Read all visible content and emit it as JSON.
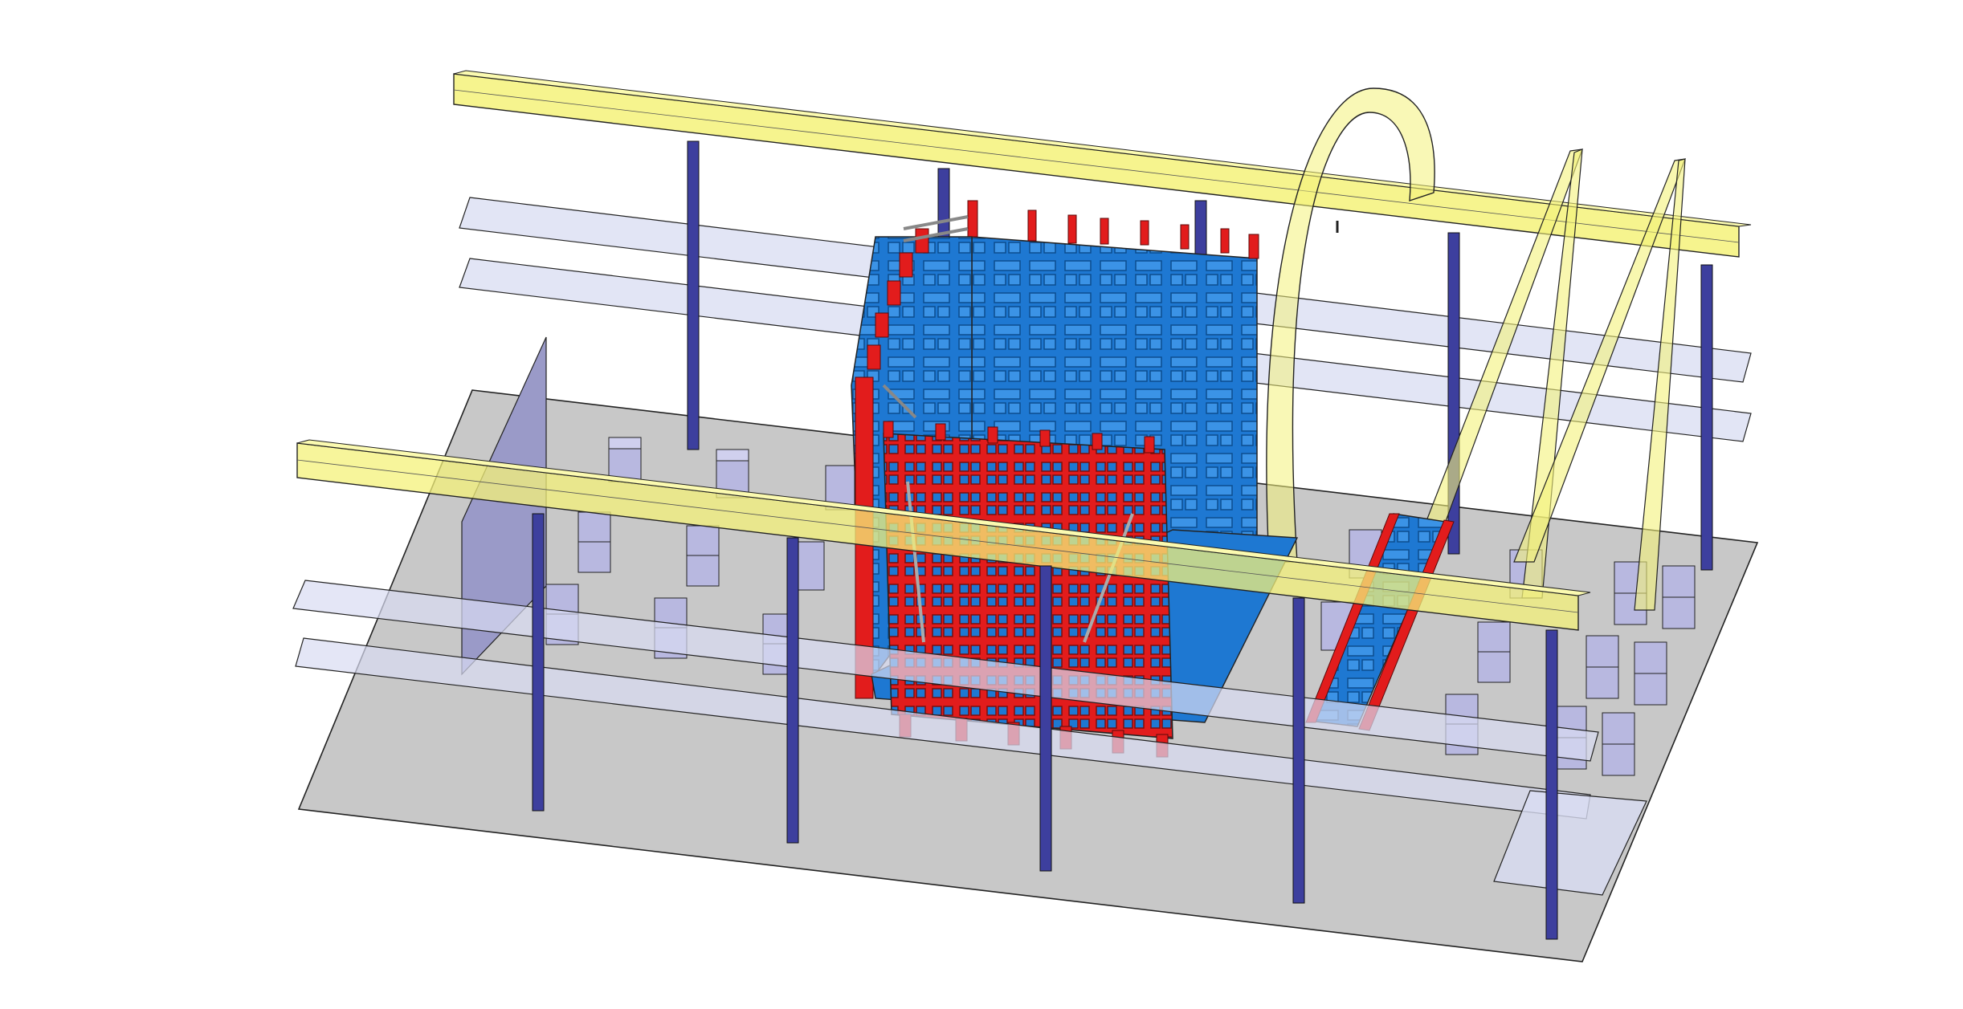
{
  "scene": {
    "description_free": true,
    "colors": {
      "background": "#ffffff",
      "floor": "#c8c8c8",
      "beam_yellow": "#f4f27a",
      "column_blue": "#3d3f9e",
      "transparent_plane": "#d8dcf2",
      "panel_blue": "#1e78d2",
      "frame_red": "#e21c1c",
      "block": "#b8b8e0",
      "wall_panel": "#9a9ac8"
    }
  }
}
